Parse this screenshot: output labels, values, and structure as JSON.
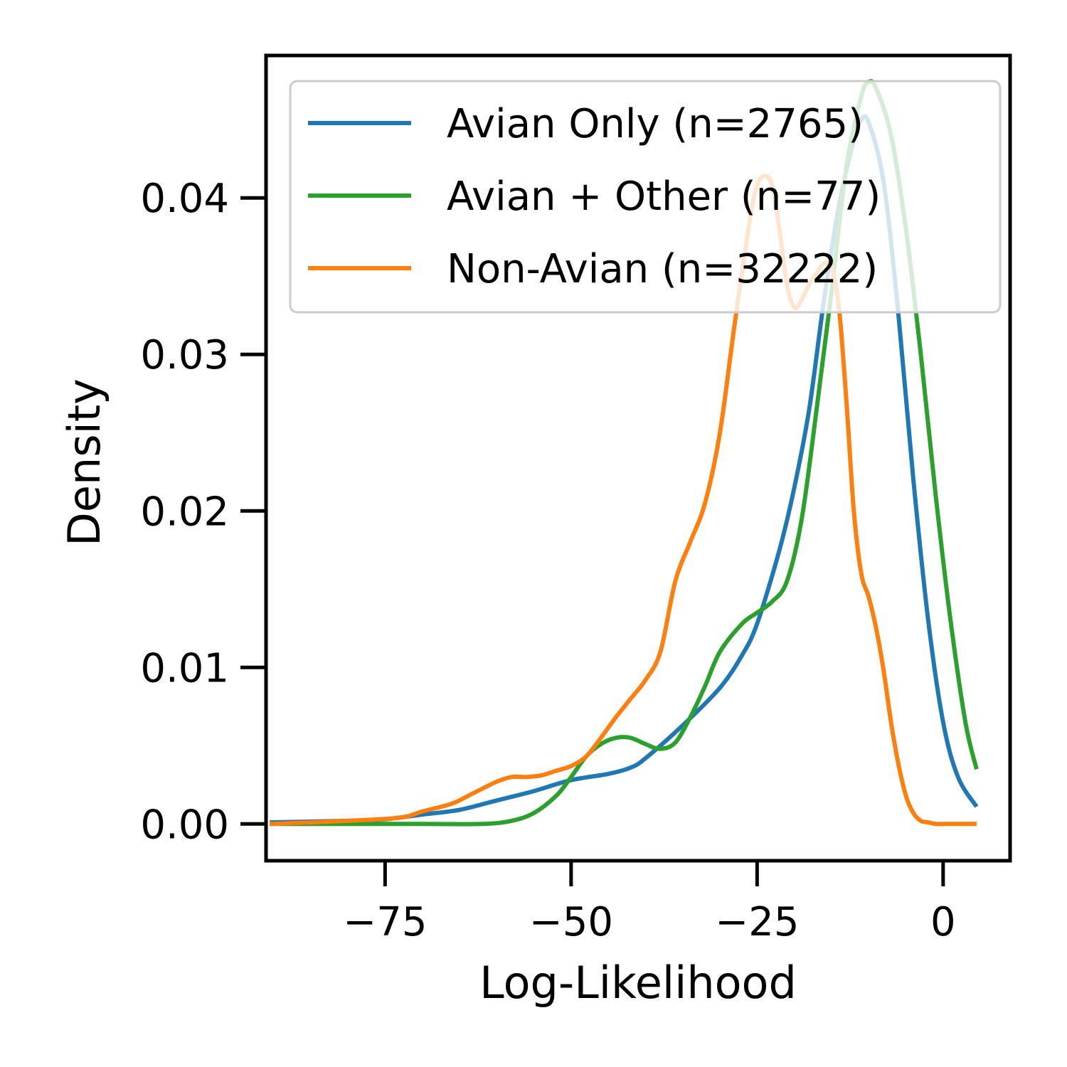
{
  "chart_data": {
    "type": "line",
    "xlabel": "Log-Likelihood",
    "ylabel": "Density",
    "xlim": [
      -91,
      9
    ],
    "ylim": [
      -0.00235,
      0.0491
    ],
    "x_ticks": [
      {
        "value": -75,
        "label": "−75"
      },
      {
        "value": -50,
        "label": "−50"
      },
      {
        "value": -25,
        "label": "−25"
      },
      {
        "value": 0,
        "label": "0"
      }
    ],
    "y_ticks": [
      {
        "value": 0.0,
        "label": "0.00"
      },
      {
        "value": 0.01,
        "label": "0.01"
      },
      {
        "value": 0.02,
        "label": "0.02"
      },
      {
        "value": 0.03,
        "label": "0.03"
      },
      {
        "value": 0.04,
        "label": "0.04"
      }
    ],
    "grid": false,
    "legend_position": "upper-right",
    "series": [
      {
        "name": "Avian Only (n=2765)",
        "color": "#1f77b4",
        "x": [
          -90.5,
          -80,
          -75,
          -70,
          -65,
          -60,
          -55,
          -50,
          -45,
          -42,
          -40,
          -35,
          -30,
          -27,
          -25,
          -22,
          -20,
          -18,
          -16,
          -14,
          -12,
          -11,
          -10,
          -8,
          -6,
          -4,
          -2,
          0,
          2,
          4.5
        ],
        "y": [
          0.0001,
          0.0002,
          0.0003,
          0.0006,
          0.0009,
          0.0015,
          0.0021,
          0.0028,
          0.0032,
          0.0036,
          0.0042,
          0.0063,
          0.0087,
          0.0108,
          0.0128,
          0.0175,
          0.0215,
          0.0265,
          0.0335,
          0.0395,
          0.0437,
          0.045,
          0.0448,
          0.041,
          0.0325,
          0.022,
          0.013,
          0.0065,
          0.003,
          0.0011
        ]
      },
      {
        "name": "Avian + Other (n=77)",
        "color": "#2ca02c",
        "x": [
          -90.5,
          -80,
          -70,
          -62,
          -58,
          -55,
          -52,
          -50,
          -48,
          -46,
          -44,
          -42,
          -40,
          -38,
          -36,
          -34,
          -32,
          -30,
          -27,
          -25,
          -23,
          -21,
          -19,
          -17,
          -15,
          -13,
          -11,
          -10,
          -9,
          -7,
          -5,
          -3,
          -1,
          1,
          3,
          4.5
        ],
        "y": [
          0.0,
          0.0,
          0.0,
          0.0,
          0.0002,
          0.0007,
          0.0018,
          0.003,
          0.0043,
          0.0051,
          0.0055,
          0.0055,
          0.0051,
          0.0048,
          0.0052,
          0.0068,
          0.0088,
          0.011,
          0.0128,
          0.0135,
          0.0142,
          0.0155,
          0.0195,
          0.0265,
          0.034,
          0.042,
          0.0465,
          0.0474,
          0.047,
          0.044,
          0.038,
          0.03,
          0.021,
          0.013,
          0.0065,
          0.0035
        ]
      },
      {
        "name": "Non-Avian (n=32222)",
        "color": "#ff7f0e",
        "x": [
          -90.5,
          -80,
          -73,
          -70,
          -66,
          -63,
          -60,
          -58,
          -56,
          -54,
          -52,
          -50,
          -48,
          -46,
          -44,
          -42,
          -40,
          -38,
          -36,
          -34,
          -32,
          -30,
          -28,
          -26,
          -25,
          -24,
          -23,
          -22,
          -21,
          -20,
          -19,
          -18,
          -17,
          -16,
          -15,
          -14,
          -13,
          -12,
          -11,
          -10,
          -9,
          -8,
          -7,
          -6,
          -5,
          -4,
          -3,
          -2,
          -1,
          0,
          1,
          2,
          3,
          4.5
        ],
        "y": [
          0.0,
          0.0002,
          0.0004,
          0.0008,
          0.0013,
          0.002,
          0.0027,
          0.003,
          0.003,
          0.0031,
          0.0034,
          0.0037,
          0.0043,
          0.0055,
          0.0068,
          0.008,
          0.0092,
          0.011,
          0.0155,
          0.018,
          0.0205,
          0.025,
          0.032,
          0.0385,
          0.0408,
          0.0414,
          0.0408,
          0.038,
          0.0345,
          0.033,
          0.0335,
          0.0345,
          0.0352,
          0.0358,
          0.0356,
          0.033,
          0.027,
          0.02,
          0.016,
          0.0145,
          0.0125,
          0.0098,
          0.0065,
          0.0038,
          0.0018,
          0.0007,
          0.0002,
          0.0001,
          0.0,
          0.0,
          0.0,
          0.0,
          0.0,
          0.0
        ]
      }
    ]
  }
}
